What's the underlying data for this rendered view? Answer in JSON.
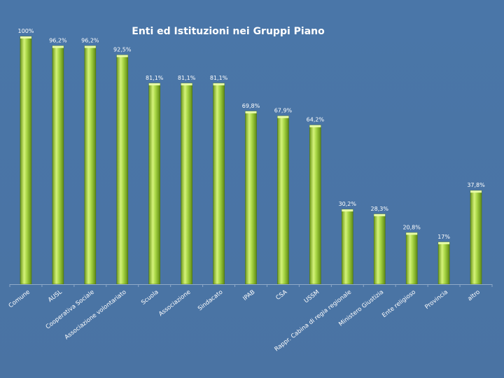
{
  "chart_data": {
    "type": "bar",
    "title": "Enti ed Istituzioni nei Gruppi Piano",
    "categories": [
      "Comune",
      "AUSL",
      "Cooperativa Sociale",
      "Associazione volontariato",
      "Scuola",
      "Associazione",
      "Sindacato",
      "IPAB",
      "CSA",
      "USSM",
      "Rappr. Cabina di regia regionale",
      "Ministero Giustizia",
      "Ente religioso",
      "Provincia",
      "altro"
    ],
    "values": [
      100,
      96.2,
      96.2,
      92.5,
      81.1,
      81.1,
      81.1,
      69.8,
      67.9,
      64.2,
      30.2,
      28.3,
      20.8,
      17,
      37.8
    ],
    "value_labels": [
      "100%",
      "96,2%",
      "96,2%",
      "92,5%",
      "81,1%",
      "81,1%",
      "81,1%",
      "69,8%",
      "67,9%",
      "64,2%",
      "30,2%",
      "28,3%",
      "20,8%",
      "17%",
      "37,8%"
    ],
    "ylim": [
      0,
      100
    ],
    "grid": false,
    "legend": "none",
    "colors": {
      "background": "#4a75a6",
      "bar_light": "#d4f27a",
      "bar_mid": "#9ccc3c",
      "bar_dark": "#5f8a14",
      "axis": "#8fa9c8",
      "text": "#ffffff"
    }
  }
}
